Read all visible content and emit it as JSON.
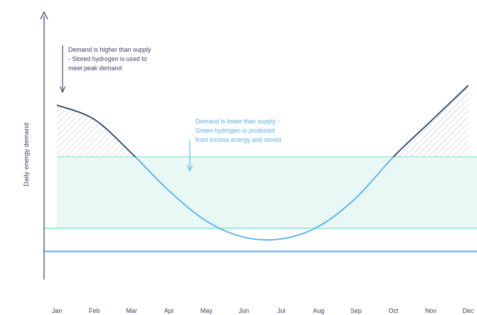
{
  "chart_data": {
    "type": "line",
    "title": "",
    "xlabel": "",
    "ylabel": "Daily energy demand",
    "categories": [
      "Jan",
      "Feb",
      "Mar",
      "Apr",
      "May",
      "Jun",
      "Jul",
      "Aug",
      "Sep",
      "Oct",
      "Nov",
      "Dec"
    ],
    "series": [
      {
        "values": [
          0.82,
          0.74,
          0.55,
          0.34,
          0.17,
          0.08,
          0.07,
          0.14,
          0.3,
          0.53,
          0.73,
          0.93
        ]
      }
    ],
    "supply_level": 0.53,
    "lower_reference_levels": [
      0.13,
      0.0
    ],
    "ylim": [
      -0.07,
      1.25
    ],
    "grid": false,
    "legend": "none",
    "annotations": [
      {
        "lines": [
          "Demand is higher than supply",
          "- Stored hydrogen is used to",
          "meet peak demand"
        ],
        "color": "#3a3f66"
      },
      {
        "lines": [
          "Demand is lower than supply -",
          "Green hydrogen is produced",
          "from excess energy and stored"
        ],
        "color": "#5aaee8"
      }
    ],
    "colors": {
      "demand_line": "#5aaee8",
      "supply_line": "#9fe3d5",
      "surplus_fill": "#e8f8f5",
      "deficit_hatch": "#9a9a9a",
      "baseline_teal": "#8ee6d0",
      "baseline_blue": "#6aaee6",
      "axis": "#3a3f66"
    }
  }
}
